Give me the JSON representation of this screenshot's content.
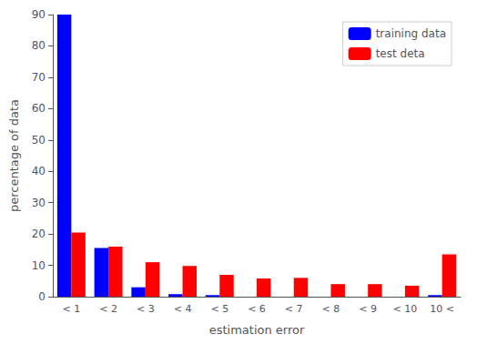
{
  "chart_data": {
    "type": "bar",
    "categories": [
      "< 1",
      "< 2",
      "< 3",
      "< 4",
      "< 5",
      "< 6",
      "< 7",
      "< 8",
      "< 9",
      "< 10",
      "10 <"
    ],
    "series": [
      {
        "name": "training data",
        "color": "#0000ff",
        "values": [
          90,
          15.5,
          3,
          0.8,
          0.5,
          0,
          0,
          0,
          0,
          0,
          0.5
        ]
      },
      {
        "name": "test deta",
        "color": "#ff0000",
        "values": [
          20.5,
          16,
          11,
          9.8,
          7,
          5.8,
          6,
          4,
          4,
          3.5,
          13.5
        ]
      }
    ],
    "xlabel": "estimation error",
    "ylabel": "percentage of data",
    "ylim": [
      0,
      90
    ],
    "yticks": [
      0,
      10,
      20,
      30,
      40,
      50,
      60,
      70,
      80,
      90
    ],
    "grid": false,
    "legend": "upper right"
  }
}
